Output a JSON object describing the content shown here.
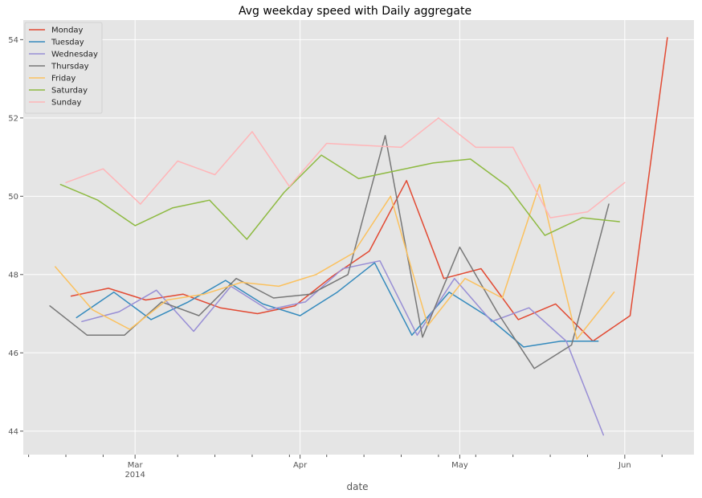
{
  "chart_data": {
    "type": "line",
    "title": "Avg weekday speed with Daily aggregate",
    "xlabel": "date",
    "ylabel": "",
    "ylim": [
      43.4,
      54.5
    ],
    "y_ticks": [
      44,
      46,
      48,
      50,
      52,
      54
    ],
    "x_ticks": [
      {
        "date": "2014-03-01",
        "label": "Mar",
        "sublabel": "2014"
      },
      {
        "date": "2014-04-01",
        "label": "Apr",
        "sublabel": ""
      },
      {
        "date": "2014-05-01",
        "label": "May",
        "sublabel": ""
      },
      {
        "date": "2014-06-01",
        "label": "Jun",
        "sublabel": ""
      }
    ],
    "x_minor_ticks": [
      "2014-02-09",
      "2014-02-16",
      "2014-02-23",
      "2014-03-09",
      "2014-03-16",
      "2014-03-23",
      "2014-03-30",
      "2014-04-06",
      "2014-04-13",
      "2014-04-20",
      "2014-04-27",
      "2014-05-04",
      "2014-05-11",
      "2014-05-18",
      "2014-05-25",
      "2014-06-08"
    ],
    "xlim": [
      "2014-02-08",
      "2014-06-14"
    ],
    "grid": true,
    "legend": "top-left",
    "series": [
      {
        "name": "Monday",
        "color": "#E24A33",
        "x": [
          "2014-02-17",
          "2014-02-24",
          "2014-03-03",
          "2014-03-10",
          "2014-03-17",
          "2014-03-24",
          "2014-03-31",
          "2014-04-07",
          "2014-04-14",
          "2014-04-21",
          "2014-04-28",
          "2014-05-05",
          "2014-05-12",
          "2014-05-19",
          "2014-05-26",
          "2014-06-02",
          "2014-06-09"
        ],
        "values": [
          47.45,
          47.65,
          47.35,
          47.5,
          47.15,
          47.0,
          47.2,
          47.95,
          48.6,
          50.4,
          47.9,
          48.15,
          46.85,
          47.25,
          46.3,
          46.95,
          54.05
        ]
      },
      {
        "name": "Tuesday",
        "color": "#348ABD",
        "x": [
          "2014-02-18",
          "2014-02-25",
          "2014-03-04",
          "2014-03-11",
          "2014-03-18",
          "2014-03-25",
          "2014-04-01",
          "2014-04-08",
          "2014-04-15",
          "2014-04-22",
          "2014-04-29",
          "2014-05-06",
          "2014-05-13",
          "2014-05-20",
          "2014-05-27"
        ],
        "values": [
          46.9,
          47.55,
          46.85,
          47.3,
          47.85,
          47.25,
          46.95,
          47.55,
          48.3,
          46.45,
          47.55,
          46.95,
          46.15,
          46.3,
          46.3
        ]
      },
      {
        "name": "Wednesday",
        "color": "#988ED5",
        "x": [
          "2014-02-19",
          "2014-02-26",
          "2014-03-05",
          "2014-03-12",
          "2014-03-19",
          "2014-03-26",
          "2014-04-02",
          "2014-04-09",
          "2014-04-16",
          "2014-04-23",
          "2014-04-30",
          "2014-05-07",
          "2014-05-14",
          "2014-05-21",
          "2014-05-28"
        ],
        "values": [
          46.8,
          47.05,
          47.6,
          46.55,
          47.7,
          47.1,
          47.3,
          48.15,
          48.35,
          46.45,
          47.9,
          46.8,
          47.15,
          46.3,
          43.9
        ]
      },
      {
        "name": "Thursday",
        "color": "#777777",
        "x": [
          "2014-02-13",
          "2014-02-20",
          "2014-02-27",
          "2014-03-06",
          "2014-03-13",
          "2014-03-20",
          "2014-03-27",
          "2014-04-03",
          "2014-04-10",
          "2014-04-17",
          "2014-04-24",
          "2014-05-01",
          "2014-05-08",
          "2014-05-15",
          "2014-05-22",
          "2014-05-29"
        ],
        "values": [
          47.2,
          46.45,
          46.45,
          47.3,
          46.95,
          47.9,
          47.4,
          47.5,
          48.0,
          51.55,
          46.4,
          48.7,
          47.05,
          45.6,
          46.2,
          49.8
        ]
      },
      {
        "name": "Friday",
        "color": "#FBC15E",
        "x": [
          "2014-02-14",
          "2014-02-21",
          "2014-02-28",
          "2014-03-07",
          "2014-03-14",
          "2014-03-21",
          "2014-03-28",
          "2014-04-04",
          "2014-04-11",
          "2014-04-18",
          "2014-04-25",
          "2014-05-02",
          "2014-05-09",
          "2014-05-16",
          "2014-05-23",
          "2014-05-30"
        ],
        "values": [
          48.2,
          47.1,
          46.6,
          47.35,
          47.5,
          47.8,
          47.7,
          48.0,
          48.55,
          50.0,
          46.7,
          47.9,
          47.4,
          50.3,
          46.35,
          47.55
        ]
      },
      {
        "name": "Saturday",
        "color": "#8EBA42",
        "x": [
          "2014-02-15",
          "2014-02-22",
          "2014-03-01",
          "2014-03-08",
          "2014-03-15",
          "2014-03-22",
          "2014-03-29",
          "2014-04-05",
          "2014-04-12",
          "2014-04-19",
          "2014-04-26",
          "2014-05-03",
          "2014-05-10",
          "2014-05-17",
          "2014-05-24",
          "2014-05-31"
        ],
        "values": [
          50.3,
          49.9,
          49.25,
          49.7,
          49.9,
          48.9,
          50.1,
          51.05,
          50.45,
          50.65,
          50.85,
          50.95,
          50.25,
          49.0,
          49.45,
          49.35
        ]
      },
      {
        "name": "Sunday",
        "color": "#FFB5B8",
        "x": [
          "2014-02-16",
          "2014-02-23",
          "2014-03-02",
          "2014-03-09",
          "2014-03-16",
          "2014-03-23",
          "2014-03-30",
          "2014-04-06",
          "2014-04-13",
          "2014-04-20",
          "2014-04-27",
          "2014-05-04",
          "2014-05-11",
          "2014-05-18",
          "2014-05-25",
          "2014-06-01"
        ],
        "values": [
          50.35,
          50.7,
          49.8,
          50.9,
          50.55,
          51.65,
          50.25,
          51.35,
          51.3,
          51.25,
          52.0,
          51.25,
          51.25,
          49.45,
          49.6,
          50.35
        ]
      }
    ],
    "extra_points_note": ""
  }
}
